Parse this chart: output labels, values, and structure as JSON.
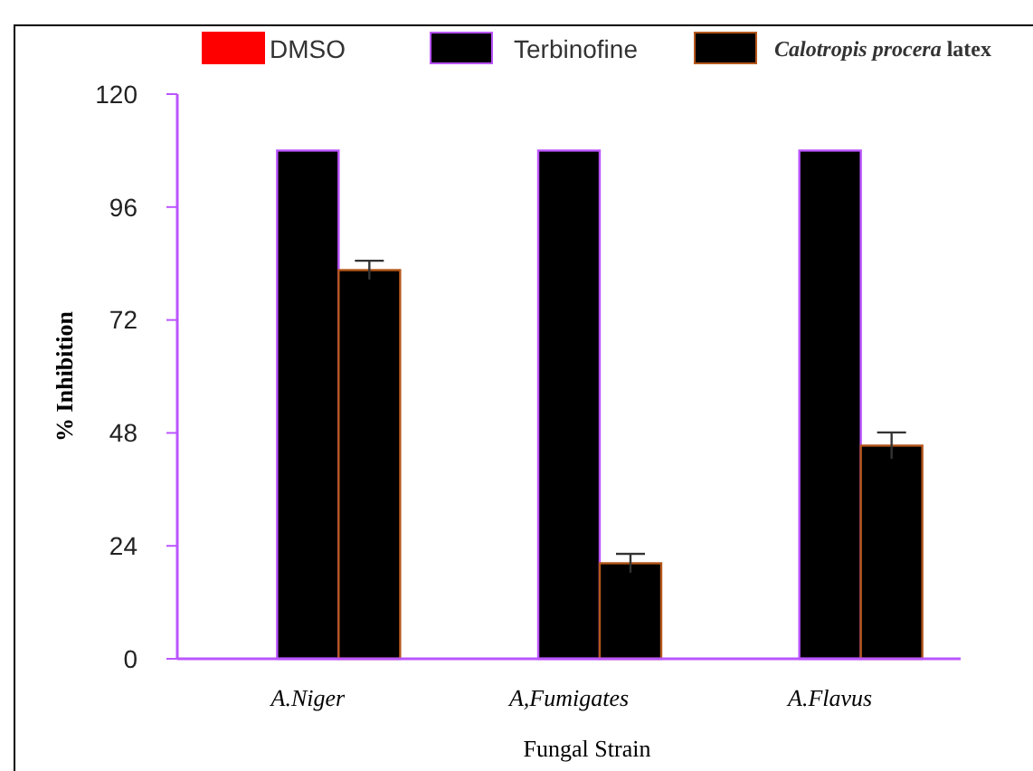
{
  "chart_data": {
    "type": "bar",
    "xlabel": "Fungal Strain",
    "ylabel": "% Inhibition",
    "categories": [
      "A.Niger",
      "A,Fumigates",
      "A.Flavus"
    ],
    "series": [
      {
        "name": "DMSO",
        "color": "#ff0000",
        "values": [
          0,
          0,
          0
        ]
      },
      {
        "name": "Terbinofine",
        "color": "#000000",
        "values": [
          108,
          108,
          108
        ]
      },
      {
        "name": "Calotropis procera latex",
        "color": "#000000",
        "values": [
          82.6,
          20.3,
          45.3
        ],
        "errors": [
          2,
          2,
          2.8
        ]
      }
    ],
    "ylim": [
      0,
      120
    ],
    "yticks": [
      0,
      24,
      48,
      72,
      96,
      120
    ],
    "legend": "top",
    "grid": false
  }
}
